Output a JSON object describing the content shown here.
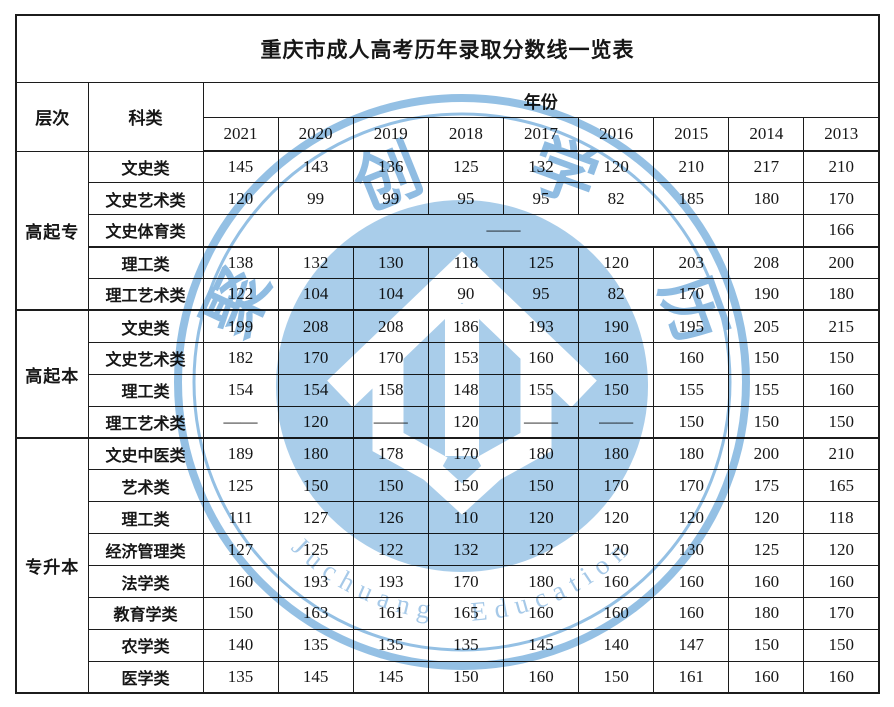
{
  "title": "重庆市成人高考历年录取分数线一览表",
  "colors": {
    "border": "#1c1c1c",
    "text": "#161616",
    "watermark_ring": "#94c0e4",
    "watermark_circle": "#a9cdea",
    "watermark_glyph": "#8fbce2",
    "watermark_text": "#a6c9e8"
  },
  "watermark": {
    "chars": [
      "聚",
      "创",
      "学",
      "历"
    ],
    "arc_text": "Juchuang Education"
  },
  "table": {
    "headers": {
      "level": "层次",
      "category": "科类",
      "year": "年份"
    },
    "years": [
      "2021",
      "2020",
      "2019",
      "2018",
      "2017",
      "2016",
      "2015",
      "2014",
      "2013"
    ],
    "sections": [
      {
        "level": "高起专",
        "rows": [
          {
            "category": "文史类",
            "values": [
              "145",
              "143",
              "136",
              "125",
              "132",
              "120",
              "210",
              "217",
              "210"
            ]
          },
          {
            "category": "文史艺术类",
            "values": [
              "120",
              "99",
              "99",
              "95",
              "95",
              "82",
              "185",
              "180",
              "170"
            ]
          },
          {
            "category": "文史体育类",
            "merged": true,
            "merged_value": "——",
            "values": [
              "166"
            ]
          },
          {
            "category": "理工类",
            "thick_top": true,
            "values": [
              "138",
              "132",
              "130",
              "118",
              "125",
              "120",
              "203",
              "208",
              "200"
            ]
          },
          {
            "category": "理工艺术类",
            "values": [
              "122",
              "104",
              "104",
              "90",
              "95",
              "82",
              "170",
              "190",
              "180"
            ]
          }
        ]
      },
      {
        "level": "高起本",
        "rows": [
          {
            "category": "文史类",
            "values": [
              "199",
              "208",
              "208",
              "186",
              "193",
              "190",
              "195",
              "205",
              "215"
            ]
          },
          {
            "category": "文史艺术类",
            "values": [
              "182",
              "170",
              "170",
              "153",
              "160",
              "160",
              "160",
              "150",
              "150"
            ]
          },
          {
            "category": "理工类",
            "values": [
              "154",
              "154",
              "158",
              "148",
              "155",
              "150",
              "155",
              "155",
              "160"
            ]
          },
          {
            "category": "理工艺术类",
            "values": [
              "——",
              "120",
              "——",
              "120",
              "——",
              "——",
              "150",
              "150",
              "150"
            ]
          }
        ]
      },
      {
        "level": "专升本",
        "rows": [
          {
            "category": "文史中医类",
            "values": [
              "189",
              "180",
              "178",
              "170",
              "180",
              "180",
              "180",
              "200",
              "210"
            ]
          },
          {
            "category": "艺术类",
            "values": [
              "125",
              "150",
              "150",
              "150",
              "150",
              "170",
              "170",
              "175",
              "165"
            ]
          },
          {
            "category": "理工类",
            "values": [
              "111",
              "127",
              "126",
              "110",
              "120",
              "120",
              "120",
              "120",
              "118"
            ]
          },
          {
            "category": "经济管理类",
            "values": [
              "127",
              "125",
              "122",
              "132",
              "122",
              "120",
              "130",
              "125",
              "120"
            ]
          },
          {
            "category": "法学类",
            "values": [
              "160",
              "193",
              "193",
              "170",
              "180",
              "160",
              "160",
              "160",
              "160"
            ]
          },
          {
            "category": "教育学类",
            "values": [
              "150",
              "163",
              "161",
              "165",
              "160",
              "160",
              "160",
              "180",
              "170"
            ]
          },
          {
            "category": "农学类",
            "values": [
              "140",
              "135",
              "135",
              "135",
              "145",
              "140",
              "147",
              "150",
              "150"
            ]
          },
          {
            "category": "医学类",
            "values": [
              "135",
              "145",
              "145",
              "150",
              "160",
              "150",
              "161",
              "160",
              "160"
            ]
          }
        ]
      }
    ]
  }
}
